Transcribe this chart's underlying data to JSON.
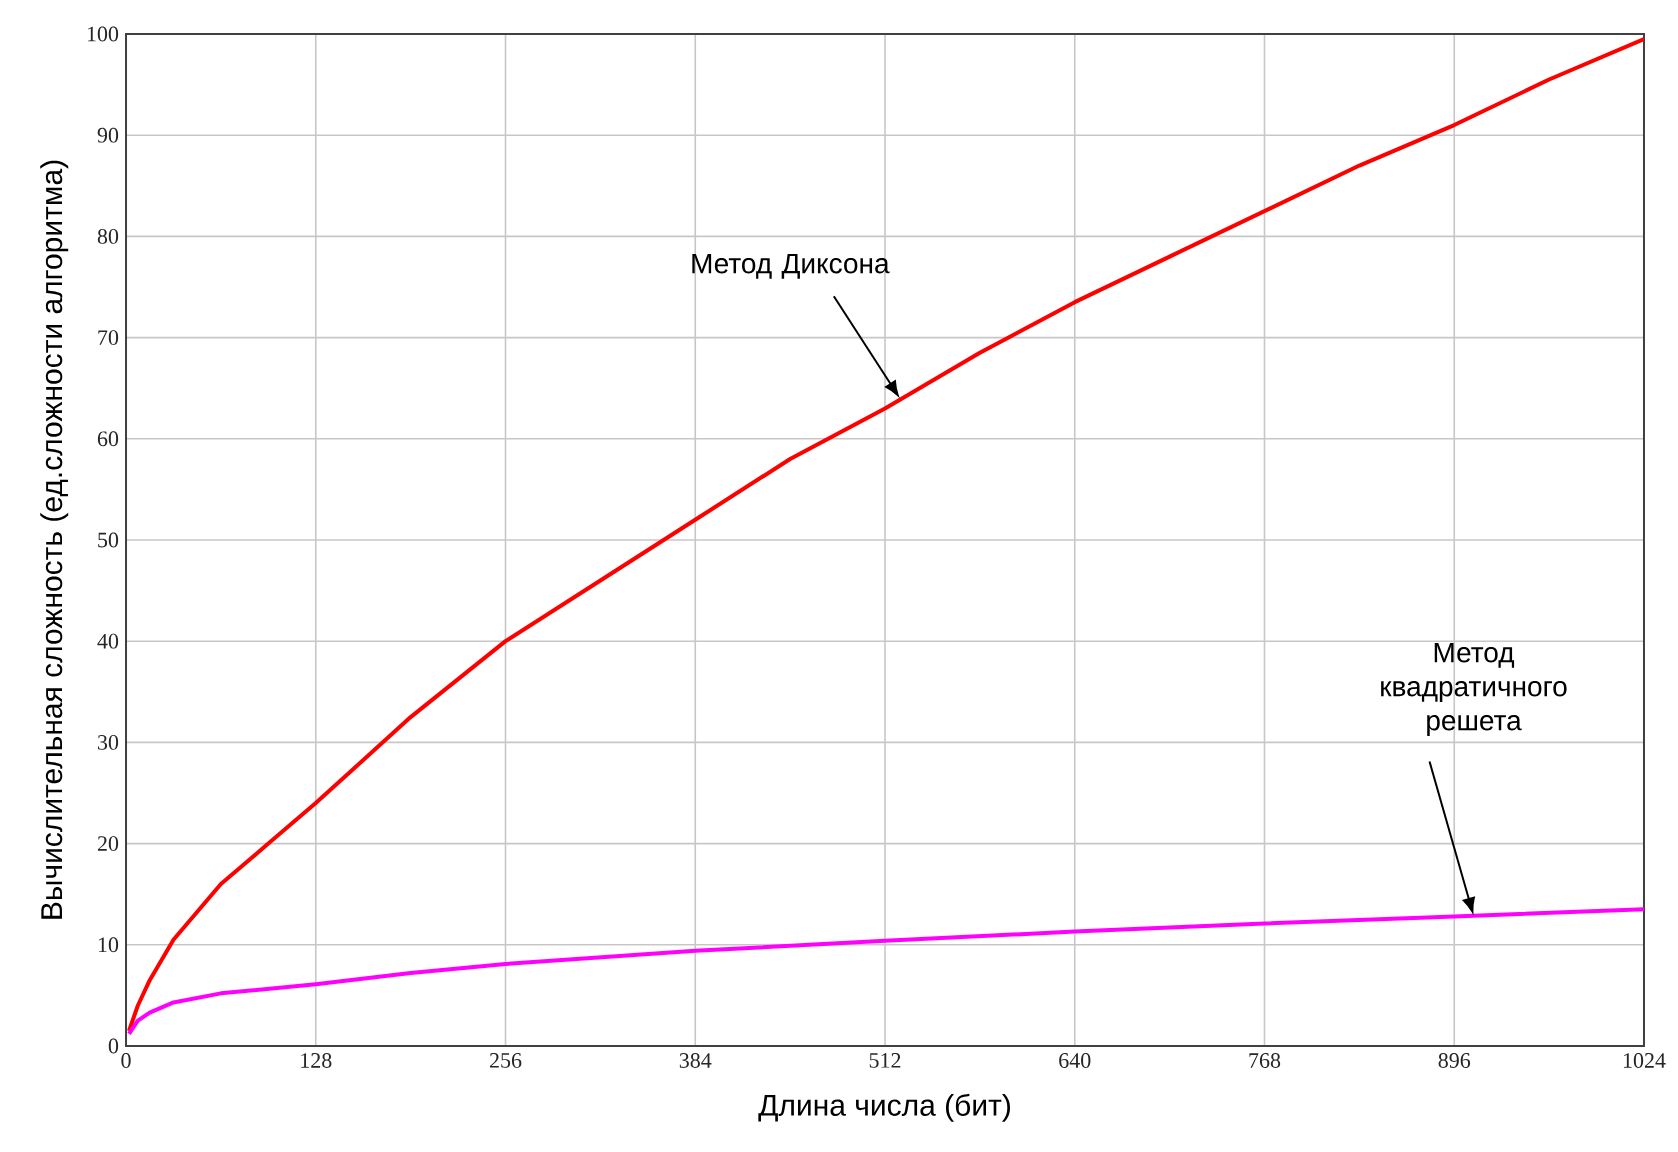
{
  "chart_data": {
    "type": "line",
    "xlabel": "Длина числа (бит)",
    "ylabel": "Вычислительная сложность (ед.сложности алгоритма)",
    "xlim": [
      0,
      1024
    ],
    "ylim": [
      0,
      100
    ],
    "xticks": [
      0,
      128,
      256,
      384,
      512,
      640,
      768,
      896,
      1024
    ],
    "yticks": [
      0,
      10,
      20,
      30,
      40,
      50,
      60,
      70,
      80,
      90,
      100
    ],
    "grid": true,
    "marker": "none",
    "line_style": "solid",
    "series": [
      {
        "color": "#ff0000",
        "x": [
          2,
          8,
          16,
          32,
          64,
          96,
          128,
          192,
          256,
          320,
          384,
          448,
          512,
          576,
          640,
          704,
          768,
          832,
          896,
          960,
          1024
        ],
        "values": [
          1.5,
          4,
          6.5,
          10.5,
          16,
          20,
          24,
          32.5,
          40,
          46,
          52,
          58,
          63,
          68.5,
          73.5,
          78,
          82.5,
          87,
          91,
          95.5,
          99.5
        ]
      },
      {
        "color": "#ff00ff",
        "x": [
          2,
          8,
          16,
          32,
          64,
          128,
          192,
          256,
          384,
          512,
          640,
          768,
          896,
          1024
        ],
        "values": [
          1.2,
          2.5,
          3.3,
          4.3,
          5.2,
          6.1,
          7.2,
          8.1,
          9.4,
          10.4,
          11.3,
          12.1,
          12.8,
          13.5
        ]
      }
    ],
    "annotations": [
      {
        "text": "Метод Диксона",
        "x": 522,
        "y": 64
      },
      {
        "text": "Метод квадратичного решета",
        "x": 909,
        "y": 12.9
      }
    ]
  }
}
